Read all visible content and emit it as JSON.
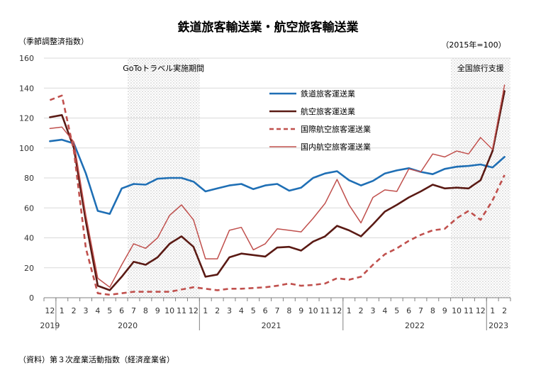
{
  "chart_data": {
    "type": "line",
    "title": "鉄道旅客輸送業・航空旅客輸送業",
    "ylabel": "（季節調整済指数）",
    "base_note": "（2015年=100）",
    "source": "（資料）第３次産業活動指数（経済産業省）",
    "ylim": [
      0,
      160
    ],
    "yticks": [
      0,
      20,
      40,
      60,
      80,
      100,
      120,
      140,
      160
    ],
    "month_labels": [
      "12",
      "1",
      "2",
      "3",
      "4",
      "5",
      "6",
      "7",
      "8",
      "9",
      "10",
      "11",
      "12",
      "1",
      "2",
      "3",
      "4",
      "5",
      "6",
      "7",
      "8",
      "9",
      "10",
      "11",
      "12",
      "1",
      "2",
      "3",
      "4",
      "5",
      "6",
      "7",
      "8",
      "9",
      "10",
      "11",
      "12",
      "1",
      "2"
    ],
    "year_labels": [
      {
        "label": "2019",
        "index": 0
      },
      {
        "label": "2020",
        "index": 6.5
      },
      {
        "label": "2021",
        "index": 18.5
      },
      {
        "label": "2022",
        "index": 30.5
      },
      {
        "label": "2023",
        "index": 37.5
      }
    ],
    "year_separators": [
      0.5,
      12.5,
      24.5,
      36.5
    ],
    "bands": [
      {
        "label": "GoToトラベル実施期間",
        "start": 6.5,
        "end": 12.5
      },
      {
        "label": "全国旅行支援",
        "start": 33.5,
        "end": 38.5
      }
    ],
    "series": [
      {
        "name": "鉄道旅客運送業",
        "color": "#1f6fb5",
        "dash": "solid",
        "width": 2.6,
        "values": [
          104.5,
          105.5,
          103,
          83,
          58,
          56,
          73,
          76,
          75.5,
          79.5,
          80,
          80,
          77.5,
          71,
          73,
          75,
          76,
          72.5,
          75,
          76,
          71.5,
          73.5,
          80,
          83,
          84.5,
          78.5,
          75,
          78,
          83,
          85,
          86.5,
          84,
          82.5,
          86,
          87.5,
          88,
          89,
          87,
          94
        ]
      },
      {
        "name": "航空旅客運送業",
        "color": "#5a1a14",
        "dash": "solid",
        "width": 2.6,
        "values": [
          120.5,
          122,
          100,
          51,
          8,
          5,
          14,
          24,
          22,
          27,
          36,
          41,
          34,
          14,
          15.5,
          27,
          29.5,
          28.5,
          27.5,
          33.5,
          34,
          31.5,
          37.5,
          41,
          48,
          45,
          41,
          49,
          57.5,
          62,
          67,
          71,
          75.5,
          73,
          73.5,
          73,
          78.5,
          98,
          138
        ]
      },
      {
        "name": "国際航空旅客運送業",
        "color": "#c0504d",
        "dash": "dashed",
        "width": 2.6,
        "values": [
          132,
          135,
          98,
          33,
          3,
          2,
          3,
          4,
          4,
          4,
          4,
          5.5,
          7,
          6,
          5,
          6,
          6,
          6.5,
          7,
          8,
          9.5,
          8,
          8.5,
          9.5,
          13,
          12,
          14,
          22,
          29,
          33,
          38,
          42,
          45,
          46,
          53,
          58,
          52,
          65,
          82
        ]
      },
      {
        "name": "国内航空旅客運送業",
        "color": "#c0504d",
        "dash": "solid",
        "width": 1.5,
        "values": [
          113,
          114,
          104,
          55,
          13,
          7,
          22,
          36,
          33,
          40,
          55,
          62,
          52,
          26,
          26,
          45,
          47,
          32,
          36,
          46,
          45,
          44,
          53,
          63,
          79,
          62,
          50,
          67,
          72,
          71,
          86,
          84,
          96,
          94,
          98,
          96,
          107,
          99,
          142
        ]
      }
    ],
    "legend_position": "upper-center"
  }
}
